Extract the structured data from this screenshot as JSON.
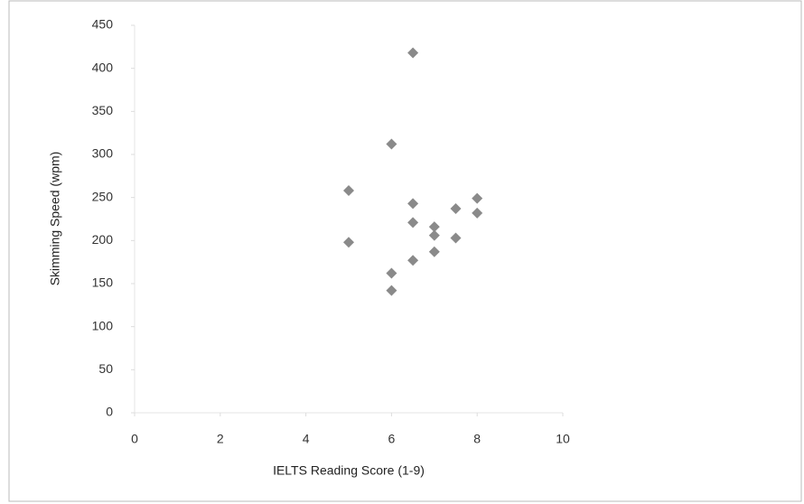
{
  "chart_data": {
    "type": "scatter",
    "x_label": "IELTS Reading Score (1-9)",
    "y_label": "Skimming Speed (wpm)",
    "color": "#8a8a8a",
    "marker": "diamond",
    "grid": false,
    "xlim": [
      0,
      10
    ],
    "xticks": [
      0,
      2,
      4,
      6,
      8,
      10
    ],
    "ylim": [
      0,
      450
    ],
    "yticks": [
      0,
      50,
      100,
      150,
      200,
      250,
      300,
      350,
      400,
      450
    ],
    "x": [
      6.5,
      6,
      5,
      5,
      6.5,
      6.5,
      7,
      7,
      7,
      6.5,
      6,
      6,
      7.5,
      7.5,
      8,
      8
    ],
    "values": [
      418,
      312,
      258,
      198,
      243,
      221,
      216,
      206,
      187,
      177,
      162,
      142,
      237,
      203,
      249,
      232
    ]
  }
}
